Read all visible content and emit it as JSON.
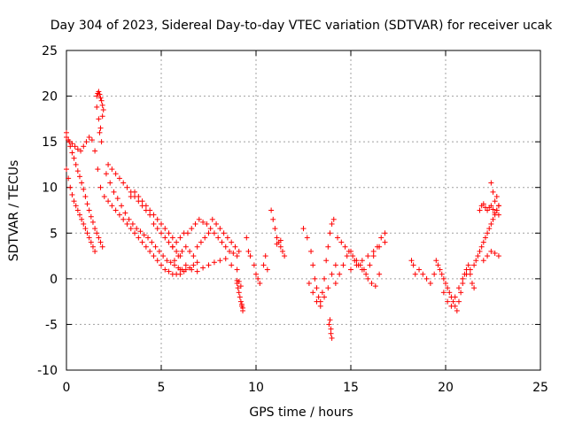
{
  "chart_data": {
    "type": "scatter",
    "title": "Day 304 of 2023, Sidereal Day-to-day VTEC variation (SDTVAR) for receiver ucak",
    "xlabel": "GPS time / hours",
    "ylabel": "SDTVAR / TECUs",
    "xlim": [
      0,
      25
    ],
    "ylim": [
      -10,
      25
    ],
    "xticks": [
      "0",
      "5",
      "10",
      "15",
      "20",
      "25"
    ],
    "yticks": [
      "-10",
      "-5",
      "0",
      "5",
      "10",
      "15",
      "20",
      "25"
    ],
    "grid": true,
    "marker": "+",
    "color": "#ff0000",
    "series": [
      {
        "name": "SDTVAR",
        "x": [
          0.0,
          0.1,
          0.2,
          0.3,
          0.4,
          0.5,
          0.6,
          0.7,
          0.8,
          0.9,
          1.0,
          1.1,
          1.2,
          1.3,
          1.4,
          1.5,
          1.6,
          1.7,
          1.8,
          1.9,
          0.0,
          0.1,
          0.2,
          0.3,
          0.4,
          0.5,
          0.6,
          0.7,
          0.8,
          0.9,
          1.0,
          1.1,
          1.2,
          1.3,
          1.4,
          1.5,
          0.0,
          0.15,
          0.3,
          0.45,
          0.6,
          0.75,
          0.9,
          1.05,
          1.2,
          1.35,
          1.5,
          1.65,
          1.8,
          1.6,
          1.65,
          1.7,
          1.75,
          1.8,
          1.85,
          1.9,
          1.95,
          1.6,
          1.7,
          1.8,
          1.9,
          1.75,
          1.85,
          2.1,
          2.3,
          2.5,
          2.7,
          2.9,
          3.1,
          3.3,
          3.5,
          3.7,
          3.9,
          4.1,
          4.3,
          4.5,
          4.7,
          4.9,
          5.1,
          5.3,
          5.5,
          5.7,
          5.9,
          6.1,
          6.3,
          6.5,
          6.7,
          6.9,
          2.2,
          2.4,
          2.6,
          2.8,
          3.0,
          3.2,
          3.4,
          3.6,
          3.8,
          4.0,
          4.2,
          4.4,
          4.6,
          4.8,
          5.0,
          5.2,
          5.4,
          5.6,
          5.8,
          6.0,
          2.0,
          2.2,
          2.4,
          2.6,
          2.8,
          3.0,
          3.2,
          3.4,
          3.6,
          3.8,
          4.0,
          4.2,
          4.4,
          4.6,
          4.8,
          5.0,
          5.2,
          5.4,
          5.6,
          5.8,
          6.0,
          6.2,
          3.4,
          3.6,
          3.8,
          4.0,
          4.2,
          4.4,
          4.6,
          4.8,
          5.0,
          5.2,
          5.4,
          5.6,
          5.6,
          5.8,
          6.0,
          6.2,
          6.4,
          6.6,
          6.8,
          7.0,
          7.2,
          7.4,
          7.6,
          7.8,
          8.0,
          8.2,
          8.4,
          8.6,
          8.8,
          9.0,
          5.7,
          5.9,
          6.1,
          6.3,
          6.5,
          6.7,
          6.9,
          7.1,
          7.3,
          7.5,
          7.7,
          7.9,
          8.1,
          8.3,
          8.5,
          8.7,
          8.9,
          9.1,
          6.0,
          6.3,
          6.6,
          6.9,
          7.2,
          7.5,
          7.8,
          8.1,
          8.4,
          8.7,
          9.0,
          9.0,
          9.05,
          9.1,
          9.15,
          9.2,
          9.25,
          9.3,
          9.2,
          9.1,
          9.0,
          9.25,
          9.3,
          9.5,
          9.6,
          9.7,
          9.9,
          10.0,
          10.1,
          10.2,
          10.4,
          10.5,
          10.6,
          10.8,
          10.9,
          11.0,
          11.1,
          11.2,
          11.3,
          11.4,
          11.5,
          11.1,
          11.3,
          12.5,
          12.7,
          12.9,
          13.0,
          13.1,
          13.2,
          13.3,
          13.4,
          13.5,
          13.6,
          13.7,
          13.8,
          13.9,
          14.0,
          14.1,
          12.8,
          13.0,
          13.2,
          13.4,
          13.6,
          13.8,
          14.0,
          14.2,
          13.9,
          13.95,
          14.0,
          13.85,
          13.95,
          14.2,
          14.4,
          14.6,
          14.8,
          15.0,
          15.2,
          15.4,
          15.6,
          15.8,
          16.0,
          16.2,
          16.4,
          16.6,
          16.8,
          14.3,
          14.5,
          14.7,
          14.9,
          15.1,
          15.3,
          15.5,
          15.7,
          15.9,
          16.1,
          16.3,
          16.5,
          15.0,
          15.3,
          15.6,
          15.9,
          16.2,
          16.5,
          16.8,
          18.2,
          18.3,
          18.4,
          18.6,
          18.8,
          19.0,
          19.2,
          19.4,
          19.5,
          19.6,
          19.7,
          19.8,
          19.9,
          20.0,
          20.1,
          20.2,
          20.3,
          20.4,
          20.5,
          20.6,
          20.7,
          20.8,
          20.9,
          21.0,
          21.1,
          21.2,
          21.3,
          21.4,
          21.5,
          19.9,
          20.1,
          20.3,
          20.5,
          20.7,
          20.9,
          21.1,
          21.3,
          21.5,
          21.6,
          21.7,
          21.8,
          21.9,
          22.0,
          22.1,
          22.2,
          22.3,
          22.4,
          22.5,
          22.6,
          22.7,
          22.8,
          21.8,
          21.9,
          22.0,
          22.1,
          22.2,
          22.3,
          22.4,
          22.5,
          22.6,
          22.7,
          22.8,
          22.0,
          22.2,
          22.4,
          22.6,
          22.8,
          22.4,
          22.5,
          22.6,
          22.7,
          22.8
        ],
        "y": [
          16.0,
          15.2,
          14.5,
          13.8,
          13.2,
          12.5,
          11.8,
          11.2,
          10.5,
          9.8,
          9.0,
          8.2,
          7.5,
          6.8,
          6.2,
          5.5,
          5.0,
          4.5,
          4.0,
          3.5,
          12.0,
          11.0,
          10.0,
          9.2,
          8.5,
          8.0,
          7.5,
          7.0,
          6.5,
          6.0,
          5.5,
          5.0,
          4.5,
          4.0,
          3.5,
          3.0,
          15.5,
          15.0,
          14.8,
          14.5,
          14.2,
          14.0,
          14.5,
          15.0,
          15.5,
          15.2,
          14.0,
          12.0,
          10.0,
          20.0,
          20.3,
          20.5,
          20.2,
          19.8,
          19.5,
          19.0,
          18.5,
          18.8,
          17.5,
          16.5,
          17.8,
          16.0,
          15.0,
          11.5,
          10.5,
          9.5,
          8.8,
          8.0,
          7.2,
          6.5,
          6.0,
          5.5,
          5.2,
          4.8,
          4.5,
          4.0,
          3.5,
          3.0,
          2.5,
          2.0,
          1.8,
          1.5,
          1.2,
          1.0,
          1.0,
          1.2,
          1.5,
          1.8,
          12.5,
          12.0,
          11.5,
          11.0,
          10.5,
          10.0,
          9.5,
          9.0,
          8.5,
          8.0,
          7.5,
          7.0,
          6.0,
          5.5,
          5.0,
          4.5,
          4.0,
          3.5,
          3.0,
          2.5,
          9.0,
          8.5,
          8.0,
          7.5,
          7.0,
          6.5,
          6.0,
          5.5,
          5.0,
          4.5,
          4.0,
          3.5,
          3.0,
          2.5,
          2.0,
          1.5,
          1.0,
          0.8,
          0.5,
          0.5,
          0.5,
          0.8,
          9.0,
          9.5,
          9.0,
          8.5,
          8.0,
          7.5,
          7.0,
          6.5,
          6.0,
          5.5,
          5.0,
          4.5,
          3.5,
          4.0,
          4.5,
          5.0,
          5.0,
          5.5,
          6.0,
          6.5,
          6.2,
          6.0,
          5.5,
          5.0,
          4.5,
          4.0,
          3.5,
          3.0,
          2.8,
          2.5,
          2.0,
          2.5,
          3.0,
          3.5,
          3.0,
          2.5,
          3.5,
          4.0,
          4.5,
          5.0,
          6.5,
          6.0,
          5.5,
          5.0,
          4.5,
          4.0,
          3.5,
          3.0,
          1.0,
          1.5,
          1.0,
          0.8,
          1.2,
          1.5,
          1.8,
          2.0,
          2.2,
          1.5,
          1.0,
          -0.5,
          -1.0,
          -1.5,
          -2.0,
          -2.5,
          -3.0,
          -3.5,
          -0.8,
          -0.3,
          -0.2,
          -2.8,
          -3.2,
          4.5,
          3.0,
          2.5,
          1.5,
          0.5,
          0.0,
          -0.5,
          1.5,
          2.5,
          1.0,
          7.5,
          6.5,
          5.5,
          4.5,
          4.0,
          3.5,
          3.0,
          2.5,
          3.8,
          4.2,
          5.5,
          4.5,
          3.0,
          1.5,
          0.0,
          -1.0,
          -2.0,
          -2.5,
          -1.5,
          0.0,
          2.0,
          3.5,
          5.0,
          6.0,
          6.5,
          -0.5,
          -1.5,
          -2.5,
          -3.0,
          -2.0,
          -1.0,
          0.5,
          1.5,
          -4.5,
          -5.5,
          -6.5,
          -5.0,
          -6.0,
          -0.5,
          0.5,
          1.5,
          2.5,
          3.0,
          2.0,
          1.5,
          1.0,
          0.5,
          1.5,
          2.5,
          3.5,
          4.5,
          5.0,
          4.5,
          4.0,
          3.5,
          3.0,
          2.5,
          2.0,
          1.5,
          1.0,
          0.0,
          -0.5,
          -0.8,
          0.5,
          1.0,
          1.5,
          2.0,
          2.5,
          3.0,
          3.5,
          4.0,
          2.0,
          1.5,
          0.5,
          1.0,
          0.5,
          0.0,
          -0.5,
          0.5,
          2.0,
          1.5,
          1.0,
          0.5,
          0.0,
          -0.5,
          -1.0,
          -1.5,
          -2.0,
          -2.5,
          -3.0,
          -3.5,
          -2.5,
          -1.5,
          -0.5,
          0.5,
          1.0,
          1.5,
          0.5,
          -0.5,
          -1.0,
          -1.5,
          -2.5,
          -3.0,
          -2.0,
          -1.0,
          0.0,
          0.5,
          1.0,
          1.5,
          2.0,
          2.5,
          3.0,
          3.5,
          4.0,
          4.5,
          5.0,
          5.5,
          6.0,
          6.5,
          7.0,
          7.5,
          8.0,
          7.5,
          8.0,
          8.2,
          7.8,
          7.5,
          7.8,
          8.0,
          7.6,
          7.2,
          7.5,
          7.0,
          2.0,
          2.5,
          3.0,
          2.8,
          2.5,
          10.5,
          9.5,
          8.5,
          9.0,
          8.0
        ]
      }
    ]
  }
}
